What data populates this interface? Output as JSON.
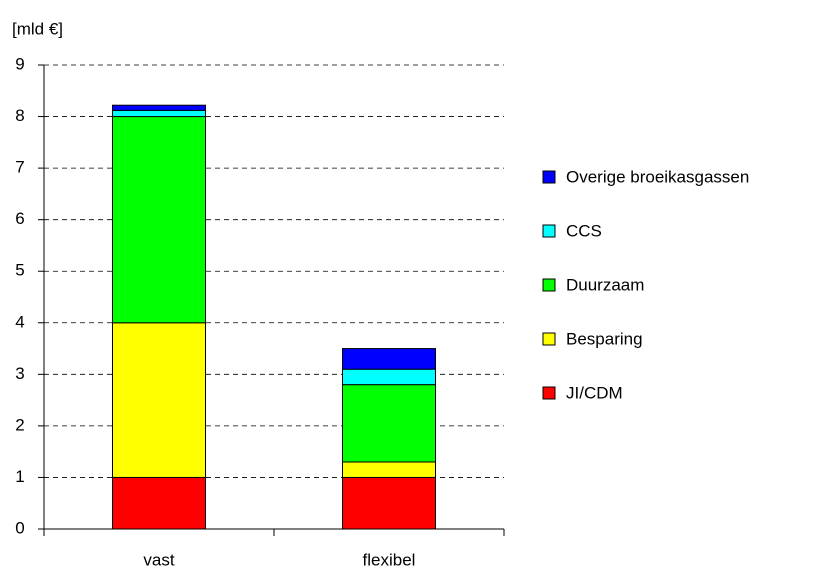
{
  "chart_data": {
    "type": "stacked_bar",
    "y_label": "[mld €]",
    "categories": [
      "vast",
      "flexibel"
    ],
    "series": [
      {
        "name": "JI/CDM",
        "color": "#ff0000",
        "values": [
          1,
          1
        ]
      },
      {
        "name": "Besparing",
        "color": "#ffff00",
        "values": [
          3,
          0.3
        ]
      },
      {
        "name": "Duurzaam",
        "color": "#00ff00",
        "values": [
          4,
          1.5
        ]
      },
      {
        "name": "CCS",
        "color": "#00ffff",
        "values": [
          0.12,
          0.3
        ]
      },
      {
        "name": "Overige broeikasgassen",
        "color": "#0000ff",
        "values": [
          0.1,
          0.4
        ]
      }
    ],
    "ylim": [
      0,
      9
    ],
    "yticks": [
      0,
      1,
      2,
      3,
      4,
      5,
      6,
      7,
      8,
      9
    ],
    "grid": true,
    "legend": "right"
  }
}
